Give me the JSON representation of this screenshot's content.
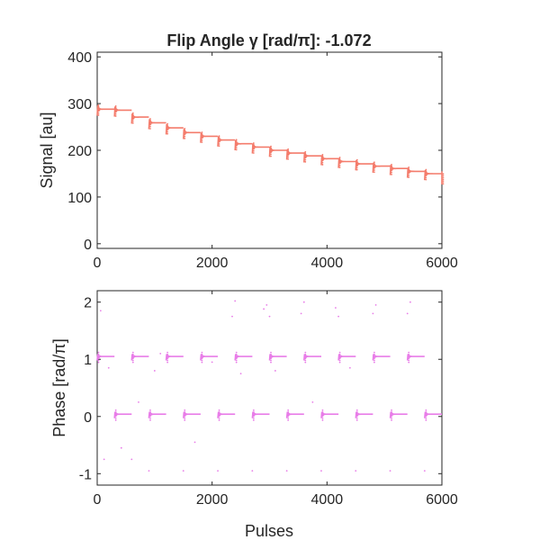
{
  "chart_data": [
    {
      "type": "scatter",
      "title": "Flip Angle γ [rad/π]: -1.072",
      "xlabel": "",
      "ylabel": "Signal [au]",
      "xlim": [
        0,
        6000
      ],
      "ylim": [
        -10,
        410
      ],
      "xticks": [
        0,
        2000,
        4000,
        6000
      ],
      "yticks": [
        0,
        100,
        200,
        300,
        400
      ],
      "grid": false,
      "color": "#f47c6c",
      "series": [
        {
          "x": [
            0,
            300,
            600,
            900,
            1200,
            1500,
            1800,
            2100,
            2400,
            2700,
            3000,
            3300,
            3600,
            3900,
            4200,
            4500,
            4800,
            5100,
            5400,
            5700,
            6000
          ],
          "values": [
            288,
            286,
            271,
            259,
            248,
            238,
            230,
            222,
            214,
            207,
            200,
            194,
            188,
            182,
            176,
            171,
            166,
            161,
            155,
            150,
            141
          ]
        }
      ]
    },
    {
      "type": "scatter",
      "title": "",
      "xlabel": "Pulses",
      "ylabel": "Phase [rad/π]",
      "xlim": [
        0,
        6000
      ],
      "ylim": [
        -1.2,
        2.2
      ],
      "xticks": [
        0,
        2000,
        4000,
        6000
      ],
      "yticks": [
        -1,
        0,
        1,
        2
      ],
      "grid": false,
      "color": "#e87de8",
      "series": [
        {
          "x": [
            0,
            600,
            1200,
            1800,
            2400,
            3000,
            3600,
            4200,
            4800,
            5400
          ],
          "values": [
            1.05,
            1.05,
            1.05,
            1.05,
            1.05,
            1.05,
            1.05,
            1.05,
            1.05,
            1.05
          ]
        },
        {
          "x": [
            300,
            900,
            1500,
            2100,
            2700,
            3300,
            3900,
            4500,
            5100,
            5700
          ],
          "values": [
            0.04,
            0.04,
            0.04,
            0.04,
            0.04,
            0.04,
            0.04,
            0.04,
            0.04,
            0.04
          ]
        }
      ],
      "outliers": [
        [
          60,
          1.85
        ],
        [
          120,
          -0.75
        ],
        [
          200,
          0.85
        ],
        [
          420,
          -0.55
        ],
        [
          600,
          -0.75
        ],
        [
          720,
          0.25
        ],
        [
          900,
          -0.95
        ],
        [
          1000,
          0.8
        ],
        [
          1100,
          1.1
        ],
        [
          1500,
          -0.95
        ],
        [
          1700,
          -0.45
        ],
        [
          2000,
          0.95
        ],
        [
          2100,
          -0.95
        ],
        [
          2350,
          1.75
        ],
        [
          2400,
          2.02
        ],
        [
          2500,
          0.75
        ],
        [
          2700,
          -0.95
        ],
        [
          2900,
          1.88
        ],
        [
          2950,
          1.95
        ],
        [
          3000,
          1.75
        ],
        [
          3100,
          0.8
        ],
        [
          3300,
          -0.95
        ],
        [
          3550,
          1.8
        ],
        [
          3600,
          2.0
        ],
        [
          3750,
          0.25
        ],
        [
          3900,
          -0.95
        ],
        [
          4150,
          1.9
        ],
        [
          4200,
          1.75
        ],
        [
          4400,
          0.85
        ],
        [
          4500,
          -0.95
        ],
        [
          4800,
          1.8
        ],
        [
          4850,
          1.95
        ],
        [
          5100,
          -0.95
        ],
        [
          5400,
          1.8
        ],
        [
          5450,
          2.0
        ],
        [
          5700,
          -0.95
        ]
      ]
    }
  ]
}
